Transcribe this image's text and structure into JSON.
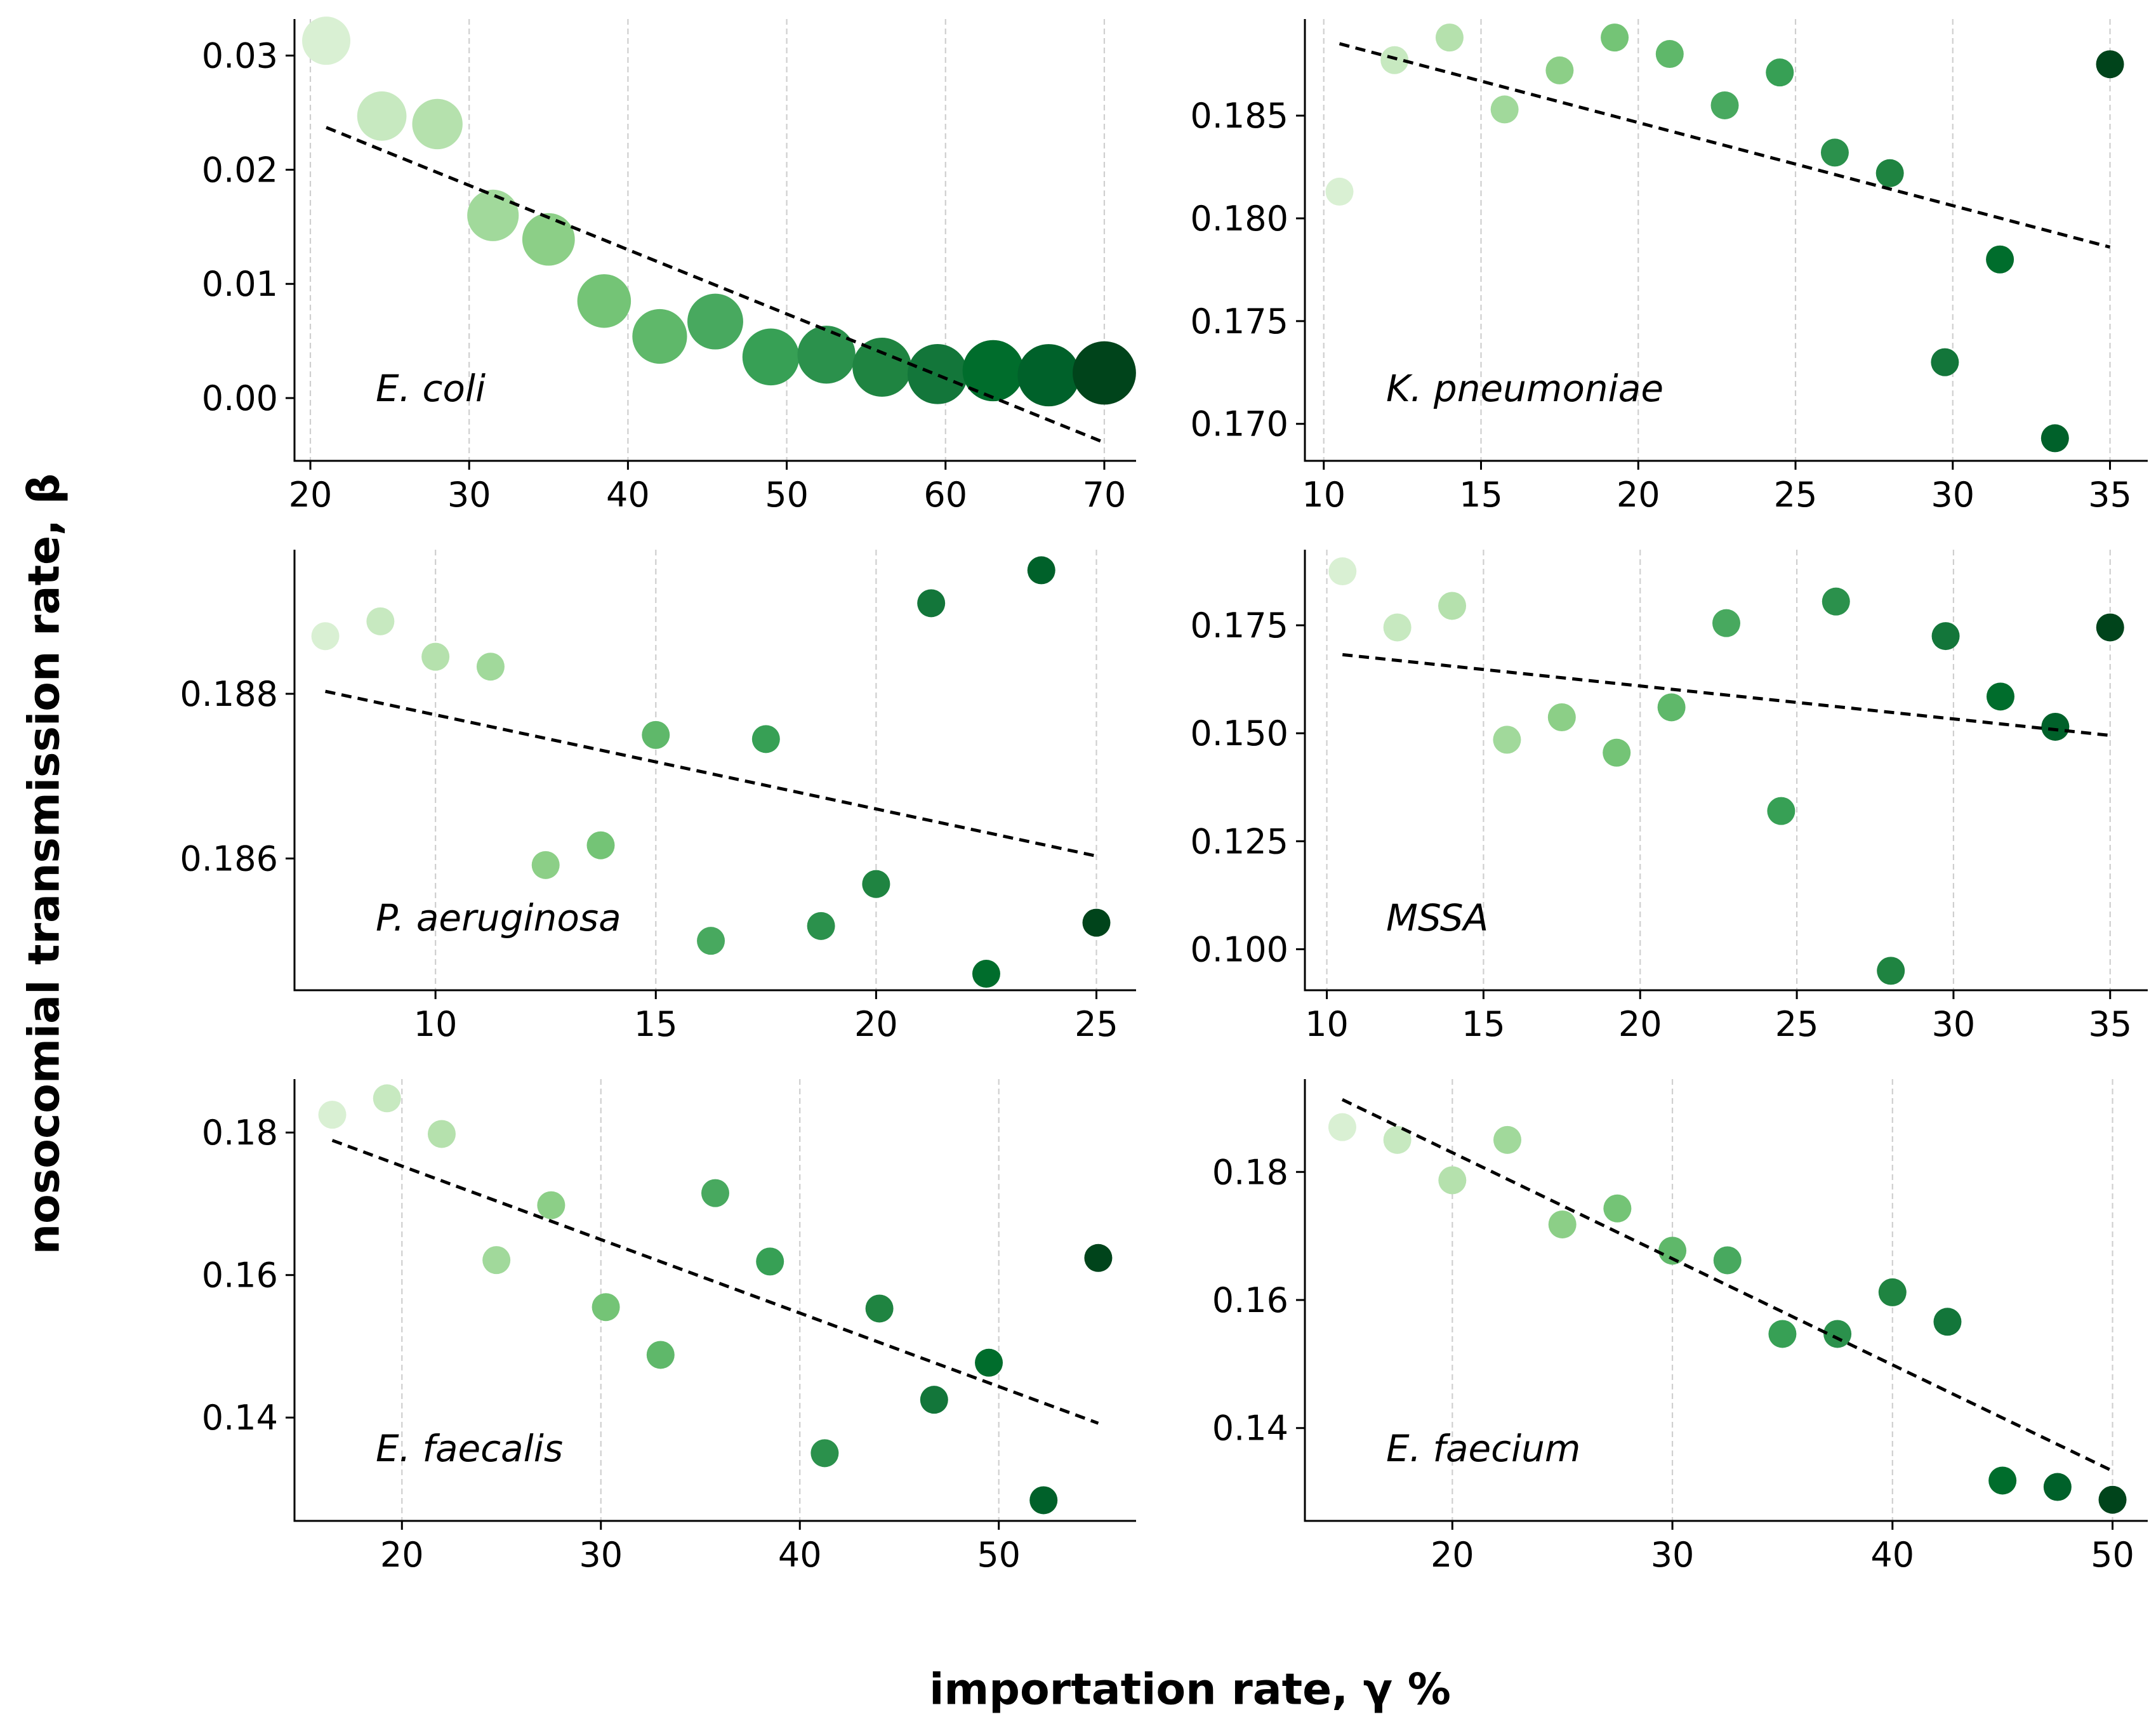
{
  "figure": {
    "ylabel": "nosocomial transmission rate, β",
    "xlabel": "importation rate, γ %"
  },
  "chart_data": [
    {
      "type": "scatter",
      "annotation": "E. coli",
      "xlim": [
        19,
        72
      ],
      "ylim": [
        -0.0055,
        0.0332
      ],
      "xticks": [
        20,
        30,
        40,
        50,
        60,
        70
      ],
      "yticks": [
        0.0,
        0.01,
        0.02,
        0.03
      ],
      "ytick_labels": [
        "0.00",
        "0.01",
        "0.02",
        "0.03"
      ],
      "xtick_labels": [
        "20",
        "30",
        "40",
        "50",
        "60",
        "70"
      ],
      "sized_markers": true,
      "points": [
        {
          "x": 21.0,
          "y": 0.0313
        },
        {
          "x": 24.5,
          "y": 0.0247
        },
        {
          "x": 28.0,
          "y": 0.024
        },
        {
          "x": 31.5,
          "y": 0.016
        },
        {
          "x": 35.0,
          "y": 0.0139
        },
        {
          "x": 38.5,
          "y": 0.0085
        },
        {
          "x": 42.0,
          "y": 0.0054
        },
        {
          "x": 45.5,
          "y": 0.0067
        },
        {
          "x": 49.0,
          "y": 0.0036
        },
        {
          "x": 52.5,
          "y": 0.0038
        },
        {
          "x": 56.0,
          "y": 0.0027
        },
        {
          "x": 59.5,
          "y": 0.0021
        },
        {
          "x": 63.0,
          "y": 0.0024
        },
        {
          "x": 66.5,
          "y": 0.002
        },
        {
          "x": 70.0,
          "y": 0.0022
        }
      ],
      "trend": {
        "x": [
          21.0,
          70.0
        ],
        "y": [
          0.0237,
          -0.0039
        ]
      }
    },
    {
      "type": "scatter",
      "annotation": "K. pneumoniae",
      "xlim": [
        9.4,
        36.2
      ],
      "ylim": [
        0.1682,
        0.1897
      ],
      "xticks": [
        10,
        15,
        20,
        25,
        30,
        35
      ],
      "yticks": [
        0.17,
        0.175,
        0.18,
        0.185
      ],
      "ytick_labels": [
        "0.170",
        "0.175",
        "0.180",
        "0.185"
      ],
      "xtick_labels": [
        "10",
        "15",
        "20",
        "25",
        "30",
        "35"
      ],
      "sized_markers": false,
      "points": [
        {
          "x": 10.5,
          "y": 0.1813
        },
        {
          "x": 12.25,
          "y": 0.1877
        },
        {
          "x": 14.0,
          "y": 0.1888
        },
        {
          "x": 15.75,
          "y": 0.1853
        },
        {
          "x": 17.5,
          "y": 0.1872
        },
        {
          "x": 19.25,
          "y": 0.1888
        },
        {
          "x": 21.0,
          "y": 0.188
        },
        {
          "x": 22.75,
          "y": 0.1855
        },
        {
          "x": 24.5,
          "y": 0.1871
        },
        {
          "x": 26.25,
          "y": 0.1832
        },
        {
          "x": 28.0,
          "y": 0.1822
        },
        {
          "x": 29.75,
          "y": 0.173
        },
        {
          "x": 31.5,
          "y": 0.178
        },
        {
          "x": 33.25,
          "y": 0.1693
        },
        {
          "x": 35.0,
          "y": 0.1875
        }
      ],
      "trend": {
        "x": [
          10.5,
          35.0
        ],
        "y": [
          0.1885,
          0.1786
        ]
      }
    },
    {
      "type": "scatter",
      "annotation": "P. aeruginosa",
      "xlim": [
        6.8,
        25.9
      ],
      "ylim": [
        0.1844,
        0.18975
      ],
      "xticks": [
        10,
        15,
        20,
        25
      ],
      "yticks": [
        0.186,
        0.188
      ],
      "ytick_labels": [
        "0.186",
        "0.188"
      ],
      "xtick_labels": [
        "10",
        "15",
        "20",
        "25"
      ],
      "sized_markers": false,
      "points": [
        {
          "x": 7.5,
          "y": 0.1887
        },
        {
          "x": 8.75,
          "y": 0.18888
        },
        {
          "x": 10.0,
          "y": 0.18845
        },
        {
          "x": 11.25,
          "y": 0.18833
        },
        {
          "x": 12.5,
          "y": 0.18592
        },
        {
          "x": 13.75,
          "y": 0.18616
        },
        {
          "x": 15.0,
          "y": 0.1875
        },
        {
          "x": 16.25,
          "y": 0.185
        },
        {
          "x": 17.5,
          "y": 0.18745
        },
        {
          "x": 18.75,
          "y": 0.18518
        },
        {
          "x": 20.0,
          "y": 0.18569
        },
        {
          "x": 21.25,
          "y": 0.1891
        },
        {
          "x": 22.5,
          "y": 0.1846
        },
        {
          "x": 23.75,
          "y": 0.1895
        },
        {
          "x": 25.0,
          "y": 0.18522
        }
      ],
      "trend": {
        "x": [
          7.5,
          25.0
        ],
        "y": [
          0.18803,
          0.18603
        ]
      }
    },
    {
      "type": "scatter",
      "annotation": "MSSA",
      "xlim": [
        9.3,
        36.2
      ],
      "ylim": [
        0.0905,
        0.1925
      ],
      "xticks": [
        10,
        15,
        20,
        25,
        30,
        35
      ],
      "yticks": [
        0.1,
        0.125,
        0.15,
        0.175
      ],
      "ytick_labels": [
        "0.100",
        "0.125",
        "0.150",
        "0.175"
      ],
      "xtick_labels": [
        "10",
        "15",
        "20",
        "25",
        "30",
        "35"
      ],
      "sized_markers": false,
      "points": [
        {
          "x": 10.5,
          "y": 0.1875
        },
        {
          "x": 12.25,
          "y": 0.1745
        },
        {
          "x": 14.0,
          "y": 0.1795
        },
        {
          "x": 15.75,
          "y": 0.1485
        },
        {
          "x": 17.5,
          "y": 0.1537
        },
        {
          "x": 19.25,
          "y": 0.1455
        },
        {
          "x": 21.0,
          "y": 0.156
        },
        {
          "x": 22.75,
          "y": 0.1755
        },
        {
          "x": 24.5,
          "y": 0.132
        },
        {
          "x": 26.25,
          "y": 0.1805
        },
        {
          "x": 28.0,
          "y": 0.095
        },
        {
          "x": 29.75,
          "y": 0.1725
        },
        {
          "x": 31.5,
          "y": 0.1585
        },
        {
          "x": 33.25,
          "y": 0.1515
        },
        {
          "x": 35.0,
          "y": 0.1745
        }
      ],
      "trend": {
        "x": [
          10.5,
          35.0
        ],
        "y": [
          0.1682,
          0.1495
        ]
      }
    },
    {
      "type": "scatter",
      "annotation": "E. faecalis",
      "xlim": [
        14.6,
        56.9
      ],
      "ylim": [
        0.1255,
        0.1875
      ],
      "xticks": [
        20,
        30,
        40,
        50
      ],
      "yticks": [
        0.14,
        0.16,
        0.18
      ],
      "ytick_labels": [
        "0.14",
        "0.16",
        "0.18"
      ],
      "xtick_labels": [
        "20",
        "30",
        "40",
        "50"
      ],
      "sized_markers": false,
      "points": [
        {
          "x": 16.5,
          "y": 0.1825
        },
        {
          "x": 19.25,
          "y": 0.1848
        },
        {
          "x": 22.0,
          "y": 0.1798
        },
        {
          "x": 24.75,
          "y": 0.1621
        },
        {
          "x": 27.5,
          "y": 0.1698
        },
        {
          "x": 30.25,
          "y": 0.1555
        },
        {
          "x": 33.0,
          "y": 0.1488
        },
        {
          "x": 35.75,
          "y": 0.1715
        },
        {
          "x": 38.5,
          "y": 0.1619
        },
        {
          "x": 41.25,
          "y": 0.135
        },
        {
          "x": 44.0,
          "y": 0.1553
        },
        {
          "x": 46.75,
          "y": 0.1425
        },
        {
          "x": 49.5,
          "y": 0.1477
        },
        {
          "x": 52.25,
          "y": 0.1284
        },
        {
          "x": 55.0,
          "y": 0.1624
        }
      ],
      "trend": {
        "x": [
          16.5,
          55.0
        ],
        "y": [
          0.1789,
          0.1392
        ]
      }
    },
    {
      "type": "scatter",
      "annotation": "E. faecium",
      "xlim": [
        13.3,
        51.6
      ],
      "ylim": [
        0.1255,
        0.1945
      ],
      "xticks": [
        20,
        30,
        40,
        50
      ],
      "yticks": [
        0.14,
        0.16,
        0.18
      ],
      "ytick_labels": [
        "0.14",
        "0.16",
        "0.18"
      ],
      "xtick_labels": [
        "20",
        "30",
        "40",
        "50"
      ],
      "sized_markers": false,
      "points": [
        {
          "x": 15.0,
          "y": 0.187
        },
        {
          "x": 17.5,
          "y": 0.185
        },
        {
          "x": 20.0,
          "y": 0.1787
        },
        {
          "x": 22.5,
          "y": 0.185
        },
        {
          "x": 25.0,
          "y": 0.1718
        },
        {
          "x": 27.5,
          "y": 0.1743
        },
        {
          "x": 30.0,
          "y": 0.1677
        },
        {
          "x": 32.5,
          "y": 0.1662
        },
        {
          "x": 35.0,
          "y": 0.1547
        },
        {
          "x": 37.5,
          "y": 0.1547
        },
        {
          "x": 40.0,
          "y": 0.1612
        },
        {
          "x": 42.5,
          "y": 0.1566
        },
        {
          "x": 45.0,
          "y": 0.1318
        },
        {
          "x": 47.5,
          "y": 0.1308
        },
        {
          "x": 50.0,
          "y": 0.1288
        }
      ],
      "trend": {
        "x": [
          15.0,
          50.0
        ],
        "y": [
          0.1913,
          0.1333
        ]
      }
    }
  ]
}
